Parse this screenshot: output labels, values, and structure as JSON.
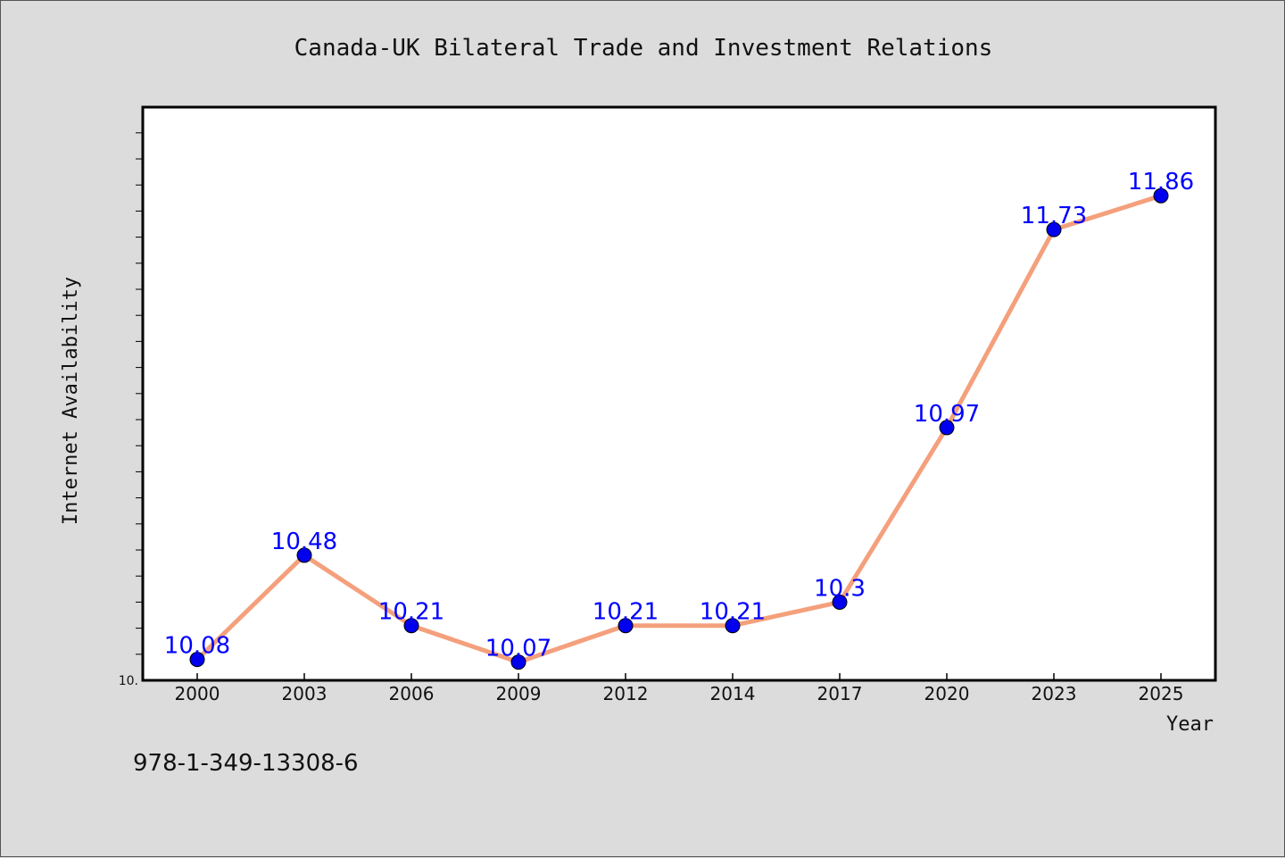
{
  "chart_data": {
    "type": "line",
    "title": "Canada-UK Bilateral Trade and Investment Relations",
    "xlabel": "Year",
    "ylabel": "Internet Availability",
    "categories": [
      "2000",
      "2003",
      "2006",
      "2009",
      "2012",
      "2014",
      "2017",
      "2020",
      "2023",
      "2025"
    ],
    "series": [
      {
        "values": [
          10.08,
          10.48,
          10.21,
          10.07,
          10.21,
          10.21,
          10.3,
          10.97,
          11.73,
          11.86
        ],
        "labels": [
          "10.08",
          "10.48",
          "10.21",
          "10.07",
          "10.21",
          "10.21",
          "10.3",
          "10.97",
          "11.73",
          "11.86"
        ],
        "line_color": "#f4a07c",
        "marker_color": "#0000ee"
      }
    ],
    "ylim": [
      10.0,
      12.2
    ],
    "y_min_tick_label": "10.",
    "grid": false,
    "annotation": "978-1-349-13308-6",
    "label_color": "#0000ff"
  }
}
